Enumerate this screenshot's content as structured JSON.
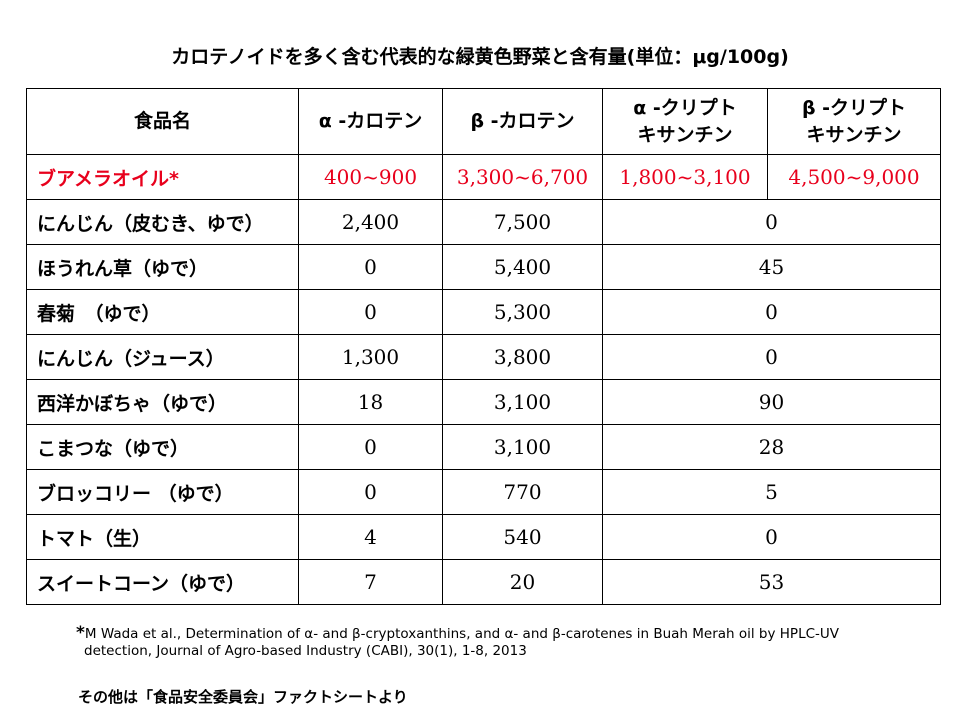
{
  "title": "カロテノイドを多く含む代表的な緑黄色野菜と含有量(単位：μg/100g)",
  "table": {
    "headers": [
      "食品名",
      "α-カロテン",
      "β-カロテン",
      "α-クリプト\nキサンチン",
      "β-クリプト\nキサンチン"
    ],
    "header_alpha_carotene": "α -カロテン",
    "header_beta_carotene": "β -カロテン",
    "header_alpha_crypto_line1": "α -クリプト",
    "header_alpha_crypto_line2": "キサンチン",
    "header_beta_crypto_line1": "β -クリプト",
    "header_beta_crypto_line2": "キサンチン",
    "header_food": "食品名",
    "highlight": {
      "name": "ブアメラオイル*",
      "alpha_carotene": "400~900",
      "beta_carotene": "3,300~6,700",
      "alpha_cryptoxanthin": "1,800~3,100",
      "beta_cryptoxanthin": "4,500~9,000",
      "color": "#e8001c"
    },
    "rows": [
      {
        "name": "にんじん（皮むき、ゆで）",
        "alpha_carotene": "2,400",
        "beta_carotene": "7,500",
        "cryptoxanthin": "0"
      },
      {
        "name": "ほうれん草（ゆで）",
        "alpha_carotene": "0",
        "beta_carotene": "5,400",
        "cryptoxanthin": "45"
      },
      {
        "name": "春菊　（ゆで）",
        "alpha_carotene": "0",
        "beta_carotene": "5,300",
        "cryptoxanthin": "0"
      },
      {
        "name": "にんじん（ジュース）",
        "alpha_carotene": "1,300",
        "beta_carotene": "3,800",
        "cryptoxanthin": "0"
      },
      {
        "name": "西洋かぼちゃ（ゆで）",
        "alpha_carotene": "18",
        "beta_carotene": "3,100",
        "cryptoxanthin": "90"
      },
      {
        "name": "こまつな（ゆで）",
        "alpha_carotene": "0",
        "beta_carotene": "3,100",
        "cryptoxanthin": "28"
      },
      {
        "name": "ブロッコリー （ゆで）",
        "alpha_carotene": "0",
        "beta_carotene": "770",
        "cryptoxanthin": "5"
      },
      {
        "name": "トマト（生）",
        "alpha_carotene": "4",
        "beta_carotene": "540",
        "cryptoxanthin": "0"
      },
      {
        "name": "スイートコーン（ゆで）",
        "alpha_carotene": "7",
        "beta_carotene": "20",
        "cryptoxanthin": "53"
      }
    ]
  },
  "footnote": {
    "marker": "*",
    "line1": "M Wada et al., Determination of α- and β-cryptoxanthins, and α- and β-carotenes in Buah Merah oil by HPLC-UV",
    "line2": "detection, Journal of Agro-based Industry (CABI), 30(1), 1-8, 2013"
  },
  "source": "その他は「食品安全委員会」ファクトシートより"
}
